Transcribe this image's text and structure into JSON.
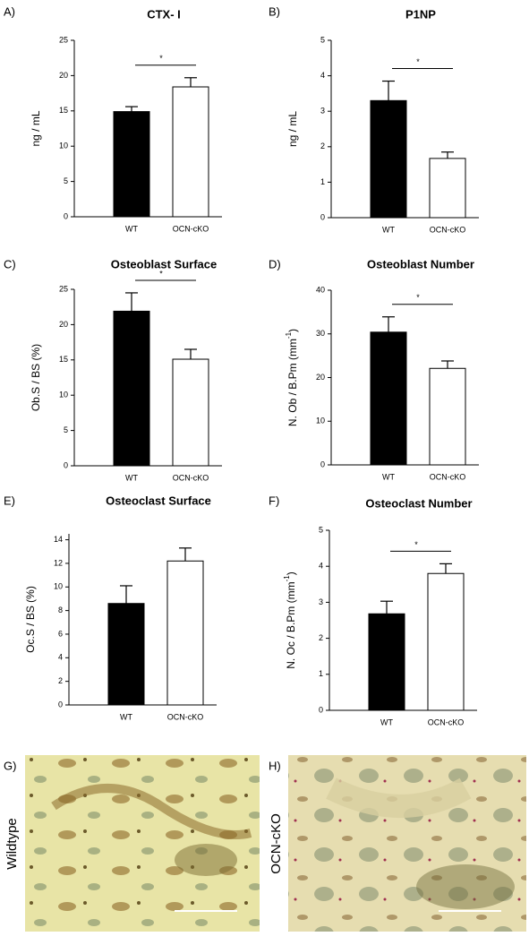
{
  "chart_data": [
    {
      "type": "bar",
      "panel": "A)",
      "title": "CTX- I",
      "ylabel": "ng / mL",
      "categories": [
        "WT",
        "OCN-cKO"
      ],
      "values": [
        14.9,
        18.4
      ],
      "errors": [
        0.7,
        1.3
      ],
      "colors": [
        "#000000",
        "#ffffff"
      ],
      "ylim": [
        0,
        25
      ],
      "yticks": [
        0,
        5,
        10,
        15,
        20,
        25
      ],
      "significance": "*"
    },
    {
      "type": "bar",
      "panel": "B)",
      "title": "P1NP",
      "ylabel": "ng / mL",
      "categories": [
        "WT",
        "OCN-cKO"
      ],
      "values": [
        3.3,
        1.67
      ],
      "errors": [
        0.55,
        0.18
      ],
      "colors": [
        "#000000",
        "#ffffff"
      ],
      "ylim": [
        0,
        5
      ],
      "yticks": [
        0,
        1,
        2,
        3,
        4,
        5
      ],
      "significance": "*"
    },
    {
      "type": "bar",
      "panel": "C)",
      "title": "Osteoblast Surface",
      "ylabel": "Ob.S / BS (%)",
      "categories": [
        "WT",
        "OCN-cKO"
      ],
      "values": [
        21.9,
        15.1
      ],
      "errors": [
        2.6,
        1.4
      ],
      "colors": [
        "#000000",
        "#ffffff"
      ],
      "ylim": [
        0,
        25
      ],
      "yticks": [
        0,
        5,
        10,
        15,
        20,
        25
      ],
      "significance": "*"
    },
    {
      "type": "bar",
      "panel": "D)",
      "title": "Osteoblast Number",
      "ylabel": "N. Ob / B.Pm (mm",
      "ylabel_sup": "-1",
      "ylabel_end": ")",
      "categories": [
        "WT",
        "OCN-cKO"
      ],
      "values": [
        30.4,
        22.1
      ],
      "errors": [
        3.5,
        1.7
      ],
      "colors": [
        "#000000",
        "#ffffff"
      ],
      "ylim": [
        0,
        40
      ],
      "yticks": [
        0,
        10,
        20,
        30,
        40
      ],
      "significance": "*"
    },
    {
      "type": "bar",
      "panel": "E)",
      "title": "Osteoclast Surface",
      "ylabel": "Oc.S / BS (%)",
      "categories": [
        "WT",
        "OCN-cKO"
      ],
      "values": [
        8.6,
        12.2
      ],
      "errors": [
        1.5,
        1.1
      ],
      "colors": [
        "#000000",
        "#ffffff"
      ],
      "ylim": [
        0,
        14.5
      ],
      "yticks": [
        0,
        2,
        4,
        6,
        8,
        10,
        12,
        14
      ]
    },
    {
      "type": "bar",
      "panel": "F)",
      "title": "Osteoclast Number",
      "ylabel": "N. Oc / B.Pm (mm",
      "ylabel_sup": "-1",
      "ylabel_end": ")",
      "categories": [
        "WT",
        "OCN-cKO"
      ],
      "values": [
        2.68,
        3.8
      ],
      "errors": [
        0.35,
        0.27
      ],
      "colors": [
        "#000000",
        "#ffffff"
      ],
      "ylim": [
        0,
        5
      ],
      "yticks": [
        0,
        1,
        2,
        3,
        4,
        5
      ],
      "significance": "*"
    }
  ],
  "images": [
    {
      "panel": "G)",
      "label": "Wildtype"
    },
    {
      "panel": "H)",
      "label": "OCN-cKO"
    }
  ]
}
